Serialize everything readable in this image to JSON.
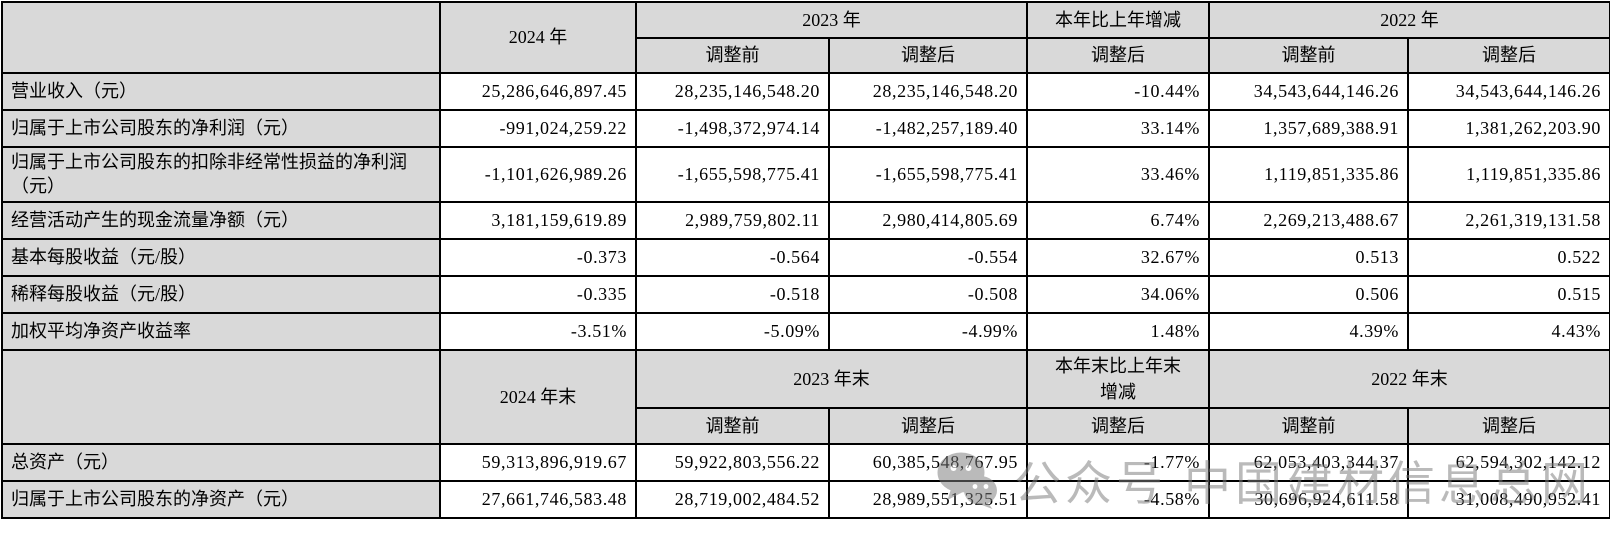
{
  "watermark": {
    "icon": "wechat-icon",
    "text": "公众号 中国建材信息总网",
    "color": "#7d7d7d"
  },
  "colors": {
    "header_bg": "#d9d9d9",
    "cell_bg": "#ffffff",
    "border": "#000000",
    "text": "#000000"
  },
  "section1": {
    "header": {
      "y2024": "2024 年",
      "y2023": "2023 年",
      "change": "本年比上年增减",
      "y2022": "2022 年",
      "sub": [
        "调整前",
        "调整后",
        "调整后",
        "调整前",
        "调整后"
      ]
    },
    "rows": [
      {
        "label": "营业收入（元）",
        "values": [
          "25,286,646,897.45",
          "28,235,146,548.20",
          "28,235,146,548.20",
          "-10.44%",
          "34,543,644,146.26",
          "34,543,644,146.26"
        ]
      },
      {
        "label": "归属于上市公司股东的净利润（元）",
        "values": [
          "-991,024,259.22",
          "-1,498,372,974.14",
          "-1,482,257,189.40",
          "33.14%",
          "1,357,689,388.91",
          "1,381,262,203.90"
        ]
      },
      {
        "label": "归属于上市公司股东的扣除非经常性损益的净利润（元）",
        "values": [
          "-1,101,626,989.26",
          "-1,655,598,775.41",
          "-1,655,598,775.41",
          "33.46%",
          "1,119,851,335.86",
          "1,119,851,335.86"
        ]
      },
      {
        "label": "经营活动产生的现金流量净额（元）",
        "values": [
          "3,181,159,619.89",
          "2,989,759,802.11",
          "2,980,414,805.69",
          "6.74%",
          "2,269,213,488.67",
          "2,261,319,131.58"
        ]
      },
      {
        "label": "基本每股收益（元/股）",
        "values": [
          "-0.373",
          "-0.564",
          "-0.554",
          "32.67%",
          "0.513",
          "0.522"
        ]
      },
      {
        "label": "稀释每股收益（元/股）",
        "values": [
          "-0.335",
          "-0.518",
          "-0.508",
          "34.06%",
          "0.506",
          "0.515"
        ]
      },
      {
        "label": "加权平均净资产收益率",
        "values": [
          "-3.51%",
          "-5.09%",
          "-4.99%",
          "1.48%",
          "4.39%",
          "4.43%"
        ]
      }
    ]
  },
  "section2": {
    "header": {
      "y2024": "2024 年末",
      "y2023": "2023 年末",
      "change": "本年末比上年末增减",
      "y2022": "2022 年末",
      "sub": [
        "调整前",
        "调整后",
        "调整后",
        "调整前",
        "调整后"
      ]
    },
    "rows": [
      {
        "label": "总资产（元）",
        "values": [
          "59,313,896,919.67",
          "59,922,803,556.22",
          "60,385,548,767.95",
          "-1.77%",
          "62,053,403,344.37",
          "62,594,302,142.12"
        ]
      },
      {
        "label": "归属于上市公司股东的净资产（元）",
        "values": [
          "27,661,746,583.48",
          "28,719,002,484.52",
          "28,989,551,325.51",
          "-4.58%",
          "30,696,924,611.58",
          "31,008,490,952.41"
        ]
      }
    ]
  }
}
